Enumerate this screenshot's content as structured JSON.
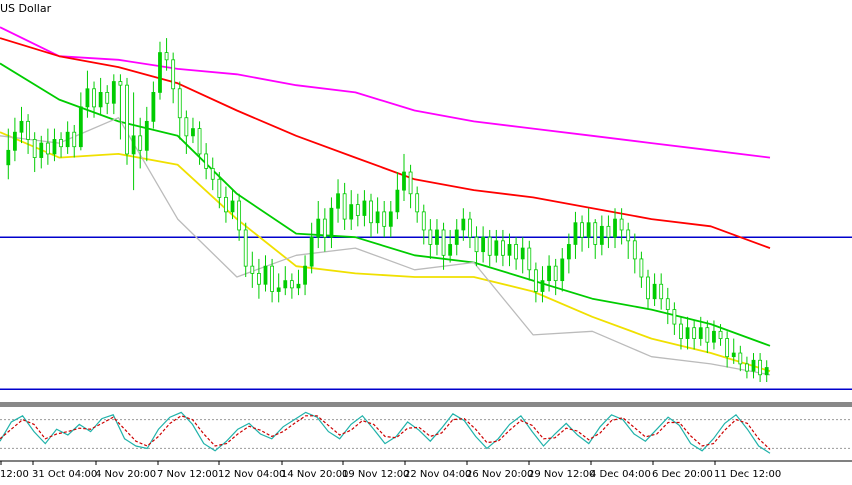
{
  "chart_title": "US Dollar",
  "chart_data": [
    {
      "type": "line",
      "panel": "price",
      "title": "US Dollar",
      "candles": [
        [
          0.4,
          0.36,
          0.3,
          0.44,
          "g"
        ],
        [
          0.36,
          0.31,
          0.27,
          0.39,
          "g"
        ],
        [
          0.31,
          0.28,
          0.24,
          0.34,
          "g"
        ],
        [
          0.28,
          0.33,
          0.26,
          0.37,
          "r"
        ],
        [
          0.33,
          0.38,
          0.31,
          0.42,
          "r"
        ],
        [
          0.38,
          0.34,
          0.32,
          0.41,
          "g"
        ],
        [
          0.34,
          0.37,
          0.3,
          0.4,
          "r"
        ],
        [
          0.37,
          0.33,
          0.3,
          0.39,
          "g"
        ],
        [
          0.33,
          0.35,
          0.31,
          0.38,
          "r"
        ],
        [
          0.35,
          0.31,
          0.28,
          0.37,
          "g"
        ],
        [
          0.31,
          0.35,
          0.29,
          0.38,
          "r"
        ],
        [
          0.35,
          0.24,
          0.2,
          0.36,
          "g"
        ],
        [
          0.24,
          0.19,
          0.14,
          0.27,
          "g"
        ],
        [
          0.19,
          0.24,
          0.17,
          0.27,
          "r"
        ],
        [
          0.24,
          0.2,
          0.16,
          0.26,
          "g"
        ],
        [
          0.2,
          0.23,
          0.18,
          0.26,
          "r"
        ],
        [
          0.23,
          0.17,
          0.15,
          0.26,
          "g"
        ],
        [
          0.17,
          0.18,
          0.15,
          0.33,
          "r"
        ],
        [
          0.18,
          0.37,
          0.16,
          0.4,
          "r"
        ],
        [
          0.37,
          0.32,
          0.2,
          0.47,
          "g"
        ],
        [
          0.32,
          0.36,
          0.27,
          0.41,
          "r"
        ],
        [
          0.36,
          0.28,
          0.24,
          0.39,
          "g"
        ],
        [
          0.28,
          0.2,
          0.17,
          0.3,
          "g"
        ],
        [
          0.2,
          0.09,
          0.06,
          0.22,
          "g"
        ],
        [
          0.09,
          0.11,
          0.05,
          0.14,
          "r"
        ],
        [
          0.11,
          0.19,
          0.09,
          0.23,
          "r"
        ],
        [
          0.19,
          0.27,
          0.17,
          0.33,
          "r"
        ],
        [
          0.27,
          0.32,
          0.25,
          0.37,
          "r"
        ],
        [
          0.32,
          0.3,
          0.27,
          0.34,
          "g"
        ],
        [
          0.3,
          0.37,
          0.28,
          0.4,
          "r"
        ],
        [
          0.37,
          0.41,
          0.34,
          0.44,
          "r"
        ],
        [
          0.41,
          0.44,
          0.38,
          0.47,
          "r"
        ],
        [
          0.44,
          0.49,
          0.42,
          0.52,
          "r"
        ],
        [
          0.49,
          0.53,
          0.46,
          0.56,
          "r"
        ],
        [
          0.53,
          0.5,
          0.47,
          0.55,
          "g"
        ],
        [
          0.5,
          0.58,
          0.48,
          0.61,
          "r"
        ],
        [
          0.58,
          0.68,
          0.56,
          0.71,
          "r"
        ],
        [
          0.68,
          0.7,
          0.64,
          0.74,
          "r"
        ],
        [
          0.7,
          0.73,
          0.66,
          0.77,
          "r"
        ],
        [
          0.73,
          0.68,
          0.65,
          0.75,
          "g"
        ],
        [
          0.68,
          0.75,
          0.66,
          0.78,
          "r"
        ],
        [
          0.75,
          0.74,
          0.7,
          0.78,
          "g"
        ],
        [
          0.74,
          0.72,
          0.68,
          0.76,
          "g"
        ],
        [
          0.72,
          0.74,
          0.7,
          0.77,
          "r"
        ],
        [
          0.74,
          0.73,
          0.69,
          0.76,
          "g"
        ],
        [
          0.73,
          0.68,
          0.65,
          0.76,
          "g"
        ],
        [
          0.68,
          0.6,
          0.56,
          0.7,
          "g"
        ],
        [
          0.6,
          0.55,
          0.5,
          0.63,
          "g"
        ],
        [
          0.55,
          0.6,
          0.52,
          0.64,
          "r"
        ],
        [
          0.6,
          0.52,
          0.49,
          0.63,
          "g"
        ],
        [
          0.52,
          0.48,
          0.44,
          0.56,
          "g"
        ],
        [
          0.48,
          0.55,
          0.45,
          0.58,
          "r"
        ],
        [
          0.55,
          0.51,
          0.47,
          0.58,
          "g"
        ],
        [
          0.51,
          0.54,
          0.48,
          0.57,
          "r"
        ],
        [
          0.54,
          0.5,
          0.47,
          0.57,
          "g"
        ],
        [
          0.5,
          0.56,
          0.48,
          0.6,
          "r"
        ],
        [
          0.56,
          0.53,
          0.49,
          0.59,
          "g"
        ],
        [
          0.53,
          0.57,
          0.5,
          0.6,
          "r"
        ],
        [
          0.57,
          0.53,
          0.5,
          0.6,
          "g"
        ],
        [
          0.53,
          0.47,
          0.42,
          0.55,
          "g"
        ],
        [
          0.47,
          0.42,
          0.37,
          0.5,
          "g"
        ],
        [
          0.42,
          0.48,
          0.4,
          0.52,
          "r"
        ],
        [
          0.48,
          0.53,
          0.46,
          0.56,
          "r"
        ],
        [
          0.53,
          0.58,
          0.51,
          0.62,
          "r"
        ],
        [
          0.58,
          0.62,
          0.55,
          0.66,
          "r"
        ],
        [
          0.62,
          0.58,
          0.55,
          0.65,
          "g"
        ],
        [
          0.58,
          0.65,
          0.56,
          0.69,
          "r"
        ],
        [
          0.65,
          0.62,
          0.58,
          0.67,
          "g"
        ],
        [
          0.62,
          0.58,
          0.55,
          0.65,
          "g"
        ],
        [
          0.58,
          0.55,
          0.52,
          0.61,
          "g"
        ],
        [
          0.55,
          0.6,
          0.53,
          0.63,
          "r"
        ],
        [
          0.6,
          0.64,
          0.57,
          0.68,
          "r"
        ],
        [
          0.64,
          0.6,
          0.57,
          0.67,
          "g"
        ],
        [
          0.6,
          0.65,
          0.58,
          0.68,
          "r"
        ],
        [
          0.65,
          0.61,
          0.58,
          0.67,
          "g"
        ],
        [
          0.61,
          0.65,
          0.58,
          0.68,
          "r"
        ],
        [
          0.65,
          0.62,
          0.59,
          0.68,
          "g"
        ],
        [
          0.62,
          0.66,
          0.6,
          0.69,
          "r"
        ],
        [
          0.66,
          0.63,
          0.6,
          0.7,
          "g"
        ],
        [
          0.63,
          0.69,
          0.61,
          0.72,
          "r"
        ],
        [
          0.69,
          0.75,
          0.67,
          0.78,
          "r"
        ],
        [
          0.75,
          0.72,
          0.68,
          0.78,
          "g"
        ],
        [
          0.72,
          0.68,
          0.65,
          0.75,
          "g"
        ],
        [
          0.68,
          0.72,
          0.66,
          0.76,
          "r"
        ],
        [
          0.72,
          0.66,
          0.63,
          0.75,
          "g"
        ],
        [
          0.66,
          0.62,
          0.59,
          0.7,
          "g"
        ],
        [
          0.62,
          0.56,
          0.53,
          0.66,
          "g"
        ],
        [
          0.56,
          0.6,
          0.54,
          0.64,
          "r"
        ],
        [
          0.6,
          0.56,
          0.52,
          0.63,
          "g"
        ],
        [
          0.56,
          0.62,
          0.55,
          0.66,
          "r"
        ],
        [
          0.62,
          0.57,
          0.54,
          0.65,
          "g"
        ],
        [
          0.57,
          0.6,
          0.54,
          0.63,
          "r"
        ],
        [
          0.6,
          0.55,
          0.52,
          0.63,
          "g"
        ],
        [
          0.55,
          0.58,
          0.52,
          0.62,
          "r"
        ],
        [
          0.58,
          0.61,
          0.56,
          0.66,
          "r"
        ],
        [
          0.61,
          0.66,
          0.59,
          0.7,
          "r"
        ],
        [
          0.66,
          0.71,
          0.64,
          0.74,
          "r"
        ],
        [
          0.71,
          0.77,
          0.69,
          0.8,
          "r"
        ],
        [
          0.77,
          0.73,
          0.7,
          0.79,
          "g"
        ],
        [
          0.73,
          0.77,
          0.7,
          0.8,
          "r"
        ],
        [
          0.77,
          0.8,
          0.74,
          0.84,
          "r"
        ],
        [
          0.8,
          0.84,
          0.78,
          0.87,
          "r"
        ],
        [
          0.84,
          0.88,
          0.82,
          0.91,
          "r"
        ],
        [
          0.88,
          0.85,
          0.82,
          0.91,
          "g"
        ],
        [
          0.85,
          0.88,
          0.83,
          0.91,
          "r"
        ],
        [
          0.88,
          0.85,
          0.82,
          0.9,
          "g"
        ],
        [
          0.85,
          0.89,
          0.83,
          0.92,
          "r"
        ],
        [
          0.89,
          0.86,
          0.83,
          0.91,
          "g"
        ],
        [
          0.86,
          0.88,
          0.84,
          0.9,
          "r"
        ],
        [
          0.88,
          0.93,
          0.86,
          0.96,
          "r"
        ],
        [
          0.93,
          0.92,
          0.88,
          0.95,
          "g"
        ],
        [
          0.92,
          0.95,
          0.9,
          0.97,
          "r"
        ],
        [
          0.95,
          0.97,
          0.93,
          0.99,
          "r"
        ],
        [
          0.97,
          0.94,
          0.92,
          0.99,
          "g"
        ],
        [
          0.94,
          0.98,
          0.92,
          1.0,
          "r"
        ],
        [
          0.98,
          0.96,
          0.94,
          1.0,
          "g"
        ]
      ],
      "moving_averages": [
        {
          "color": "#ff00ff",
          "values": [
            0.02,
            0.1,
            0.11,
            0.135,
            0.15,
            0.18,
            0.2,
            0.25,
            0.28,
            0.3,
            0.32,
            0.34,
            0.36,
            0.38
          ]
        },
        {
          "color": "#ff0000",
          "values": [
            0.05,
            0.1,
            0.13,
            0.175,
            0.25,
            0.32,
            0.38,
            0.44,
            0.47,
            0.49,
            0.52,
            0.55,
            0.57,
            0.63
          ]
        },
        {
          "color": "#00cc00",
          "values": [
            0.12,
            0.22,
            0.28,
            0.32,
            0.48,
            0.59,
            0.6,
            0.65,
            0.67,
            0.72,
            0.77,
            0.8,
            0.84,
            0.9
          ]
        },
        {
          "color": "#f0e000",
          "values": [
            0.31,
            0.38,
            0.37,
            0.4,
            0.55,
            0.68,
            0.7,
            0.71,
            0.71,
            0.75,
            0.82,
            0.88,
            0.92,
            0.97
          ]
        },
        {
          "color": "#bbbbbb",
          "values": [
            0.32,
            0.34,
            0.27,
            0.55,
            0.71,
            0.65,
            0.63,
            0.69,
            0.67,
            0.87,
            0.86,
            0.93,
            0.95,
            0.98
          ]
        }
      ],
      "horizontal_lines": [
        {
          "color": "#0000cc",
          "level": 0.6
        },
        {
          "color": "#0000cc",
          "level": 1.02
        }
      ],
      "x_tick_labels": [
        "12:00",
        "31 Oct 04:00",
        "4 Nov 20:00",
        "7 Nov 12:00",
        "12 Nov 04:00",
        "14 Nov 20:00",
        "19 Nov 12:00",
        "22 Nov 04:00",
        "26 Nov 20:00",
        "29 Nov 12:00",
        "4 Dec 04:00",
        "6 Dec 20:00",
        "11 Dec 12:00"
      ]
    },
    {
      "type": "line",
      "panel": "stochastic",
      "series": [
        {
          "color": "#20b2aa",
          "style": "solid",
          "values": [
            35,
            75,
            88,
            55,
            30,
            60,
            48,
            70,
            55,
            82,
            90,
            40,
            25,
            20,
            60,
            85,
            95,
            70,
            30,
            15,
            35,
            60,
            72,
            50,
            40,
            65,
            80,
            95,
            85,
            55,
            40,
            70,
            88,
            60,
            30,
            45,
            75,
            58,
            35,
            62,
            92,
            78,
            45,
            20,
            40,
            70,
            88,
            55,
            25,
            50,
            72,
            48,
            30,
            65,
            90,
            80,
            50,
            35,
            60,
            85,
            68,
            30,
            15,
            40,
            72,
            90,
            60,
            25,
            10
          ]
        },
        {
          "color": "#cc0000",
          "style": "dashed",
          "values": [
            40,
            60,
            80,
            70,
            40,
            50,
            55,
            62,
            60,
            72,
            85,
            60,
            35,
            25,
            45,
            72,
            88,
            80,
            50,
            25,
            30,
            50,
            66,
            58,
            45,
            55,
            72,
            88,
            88,
            68,
            48,
            58,
            78,
            70,
            45,
            42,
            62,
            64,
            45,
            52,
            80,
            82,
            60,
            32,
            35,
            58,
            78,
            68,
            40,
            42,
            62,
            56,
            38,
            52,
            78,
            84,
            64,
            44,
            50,
            74,
            74,
            46,
            25,
            30,
            58,
            80,
            72,
            40,
            18
          ]
        }
      ],
      "levels": [
        80,
        20
      ]
    }
  ]
}
